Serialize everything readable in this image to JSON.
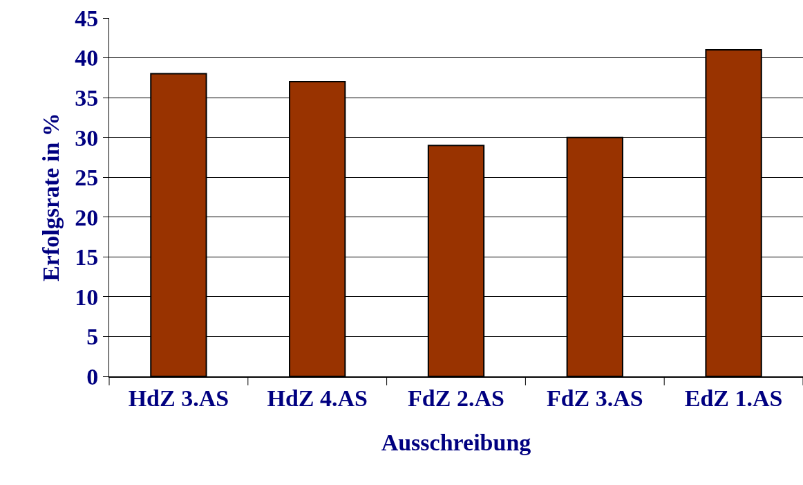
{
  "chart_data": {
    "type": "bar",
    "ylabel": "Erfolgsrate in %",
    "xlabel": "Ausschreibung",
    "categories": [
      "HdZ 3.AS",
      "HdZ 4.AS",
      "FdZ 2.AS",
      "FdZ 3.AS",
      "EdZ 1.AS"
    ],
    "values": [
      38,
      37,
      29,
      30,
      41
    ],
    "color": "#993300",
    "ylim": [
      0,
      45
    ],
    "yticks": [
      0,
      5,
      10,
      15,
      20,
      25,
      30,
      35,
      40,
      45
    ],
    "grid": "y"
  }
}
